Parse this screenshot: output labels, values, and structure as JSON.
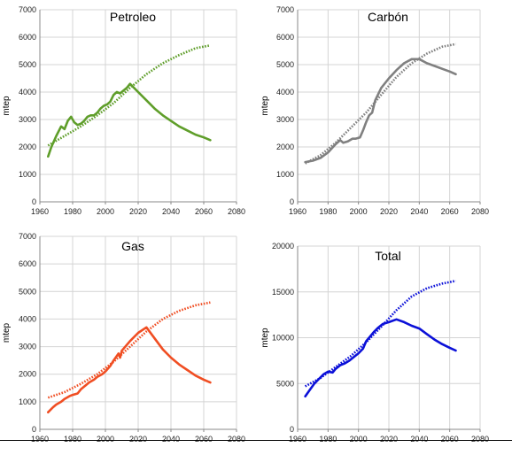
{
  "chart_data": [
    {
      "type": "line",
      "title": "Petroleo",
      "ylabel": "mtep",
      "xlim": [
        1960,
        2080
      ],
      "ylim": [
        0,
        7000
      ],
      "xticks": [
        "1960",
        "1980",
        "2000",
        "2020",
        "2040",
        "2060",
        "2080"
      ],
      "yticks": [
        "0",
        "1000",
        "2000",
        "3000",
        "4000",
        "5000",
        "6000",
        "7000"
      ],
      "color": "#5f9e2a",
      "series": [
        {
          "style": "solid",
          "x": [
            1965,
            1967,
            1970,
            1973,
            1975,
            1977,
            1979,
            1981,
            1983,
            1985,
            1987,
            1989,
            1991,
            1993,
            1995,
            1997,
            1999,
            2001,
            2003,
            2005,
            2007,
            2009,
            2011,
            2013,
            2015,
            2020,
            2025,
            2030,
            2035,
            2040,
            2045,
            2050,
            2055,
            2060,
            2064
          ],
          "y": [
            1650,
            2000,
            2400,
            2750,
            2650,
            2950,
            3100,
            2900,
            2800,
            2850,
            2950,
            3100,
            3150,
            3150,
            3250,
            3400,
            3500,
            3550,
            3650,
            3900,
            4000,
            3950,
            4050,
            4150,
            4300,
            4000,
            3700,
            3400,
            3150,
            2950,
            2750,
            2600,
            2450,
            2350,
            2250
          ]
        },
        {
          "style": "dotted",
          "x": [
            1965,
            1975,
            1985,
            1995,
            2005,
            2015,
            2025,
            2035,
            2045,
            2055,
            2064
          ],
          "y": [
            2050,
            2400,
            2750,
            3150,
            3600,
            4150,
            4650,
            5050,
            5350,
            5600,
            5700
          ]
        }
      ]
    },
    {
      "type": "line",
      "title": "Carbón",
      "ylabel": "mtep",
      "xlim": [
        1960,
        2080
      ],
      "ylim": [
        0,
        7000
      ],
      "xticks": [
        "1960",
        "1980",
        "2000",
        "2020",
        "2040",
        "2060",
        "2080"
      ],
      "yticks": [
        "0",
        "1000",
        "2000",
        "3000",
        "4000",
        "5000",
        "6000",
        "7000"
      ],
      "color": "#808080",
      "series": [
        {
          "style": "solid",
          "x": [
            1965,
            1970,
            1975,
            1980,
            1985,
            1988,
            1990,
            1993,
            1996,
            1998,
            2001,
            2003,
            2005,
            2007,
            2009,
            2011,
            2015,
            2020,
            2025,
            2030,
            2035,
            2040,
            2045,
            2050,
            2055,
            2060,
            2064
          ],
          "y": [
            1450,
            1500,
            1600,
            1800,
            2100,
            2250,
            2150,
            2200,
            2300,
            2300,
            2350,
            2600,
            2900,
            3150,
            3250,
            3700,
            4150,
            4500,
            4800,
            5050,
            5200,
            5200,
            5050,
            4950,
            4850,
            4750,
            4650
          ]
        },
        {
          "style": "dotted",
          "x": [
            1965,
            1975,
            1985,
            1995,
            2005,
            2015,
            2025,
            2035,
            2045,
            2055,
            2064
          ],
          "y": [
            1400,
            1700,
            2150,
            2700,
            3250,
            3900,
            4550,
            5050,
            5400,
            5650,
            5750
          ]
        }
      ]
    },
    {
      "type": "line",
      "title": "Gas",
      "ylabel": "mtep",
      "xlim": [
        1960,
        2080
      ],
      "ylim": [
        0,
        7000
      ],
      "xticks": [
        "1960",
        "1980",
        "2000",
        "2020",
        "2040",
        "2060",
        "2080"
      ],
      "yticks": [
        "0",
        "1000",
        "2000",
        "3000",
        "4000",
        "5000",
        "6000",
        "7000"
      ],
      "color": "#f04e23",
      "series": [
        {
          "style": "solid",
          "x": [
            1965,
            1968,
            1970,
            1973,
            1975,
            1978,
            1980,
            1983,
            1985,
            1988,
            1990,
            1993,
            1995,
            1998,
            2000,
            2003,
            2005,
            2008,
            2009,
            2010,
            2015,
            2020,
            2025,
            2030,
            2035,
            2040,
            2045,
            2050,
            2055,
            2060,
            2064
          ],
          "y": [
            620,
            800,
            900,
            1000,
            1100,
            1200,
            1250,
            1300,
            1450,
            1600,
            1700,
            1800,
            1900,
            2000,
            2100,
            2300,
            2500,
            2750,
            2600,
            2850,
            3200,
            3500,
            3700,
            3300,
            2900,
            2600,
            2350,
            2150,
            1950,
            1800,
            1700
          ]
        },
        {
          "style": "dotted",
          "x": [
            1965,
            1975,
            1985,
            1995,
            2005,
            2015,
            2025,
            2035,
            2045,
            2055,
            2064
          ],
          "y": [
            1150,
            1350,
            1650,
            2000,
            2450,
            3000,
            3550,
            4000,
            4300,
            4500,
            4600
          ]
        }
      ]
    },
    {
      "type": "line",
      "title": "Total",
      "ylabel": "mtep",
      "xlim": [
        1960,
        2080
      ],
      "ylim": [
        0,
        20000
      ],
      "xticks": [
        "1960",
        "1980",
        "2000",
        "2020",
        "2040",
        "2060",
        "2080"
      ],
      "yticks": [
        "0",
        "5000",
        "10000",
        "15000",
        "20000"
      ],
      "color": "#0b10d8",
      "series": [
        {
          "style": "solid",
          "x": [
            1965,
            1968,
            1971,
            1974,
            1977,
            1980,
            1983,
            1985,
            1988,
            1991,
            1994,
            1997,
            2000,
            2003,
            2005,
            2008,
            2010,
            2013,
            2016,
            2020,
            2025,
            2030,
            2035,
            2040,
            2045,
            2050,
            2055,
            2060,
            2064
          ],
          "y": [
            3600,
            4300,
            5000,
            5500,
            6000,
            6300,
            6200,
            6600,
            7000,
            7200,
            7500,
            7900,
            8300,
            8800,
            9600,
            10200,
            10600,
            11100,
            11500,
            11700,
            12000,
            11700,
            11300,
            11000,
            10400,
            9800,
            9300,
            8900,
            8600
          ]
        },
        {
          "style": "dotted",
          "x": [
            1965,
            1975,
            1985,
            1995,
            2005,
            2015,
            2025,
            2035,
            2045,
            2055,
            2064
          ],
          "y": [
            4700,
            5600,
            6800,
            8000,
            9500,
            11200,
            13000,
            14500,
            15400,
            15900,
            16200
          ]
        }
      ]
    }
  ]
}
